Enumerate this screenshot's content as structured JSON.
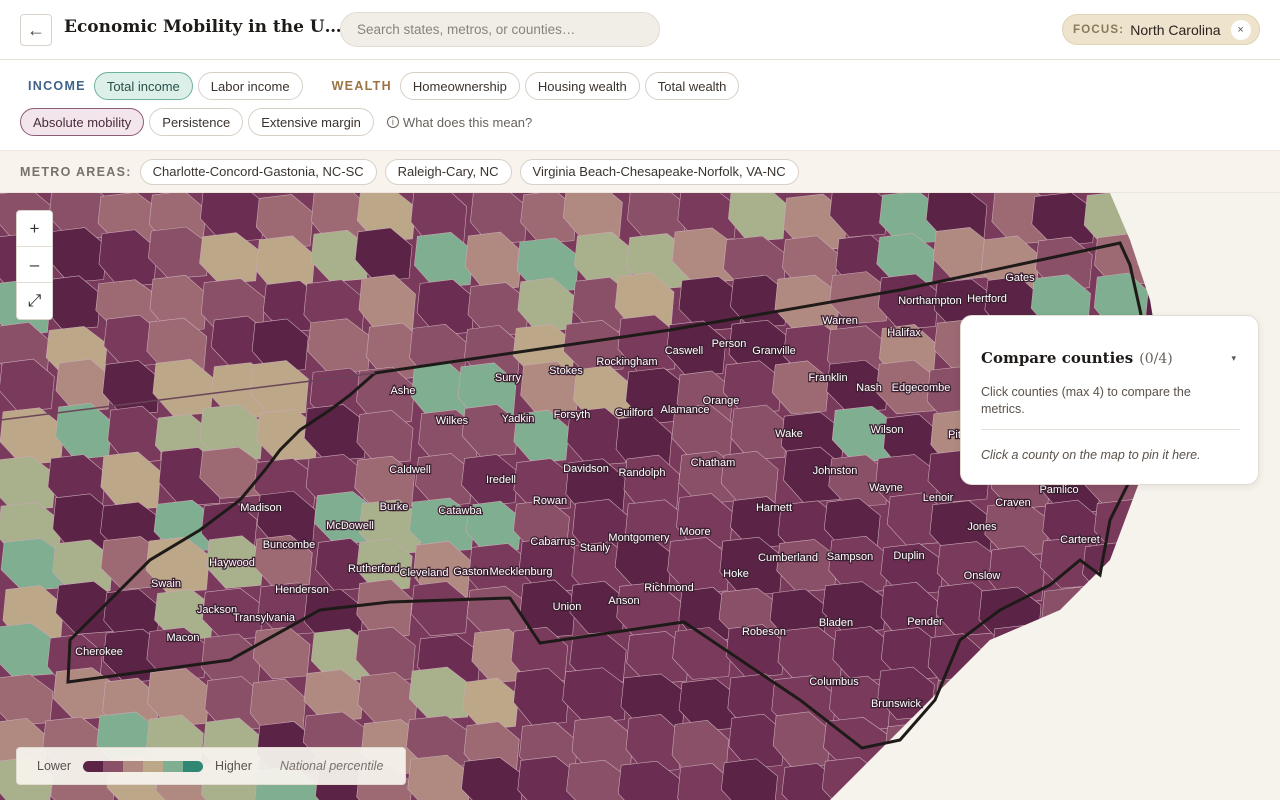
{
  "header": {
    "back_icon": "arrow-left-icon",
    "title": "Economic Mobility in the United States",
    "search_placeholder": "Search states, metros, or counties…",
    "focus_label": "FOCUS:",
    "focus_value": "North Carolina",
    "focus_clear": "×"
  },
  "filters": {
    "income_label": "INCOME",
    "income_options": [
      "Total income",
      "Labor income"
    ],
    "income_selected": "Total income",
    "wealth_label": "WEALTH",
    "wealth_options": [
      "Homeownership",
      "Housing wealth",
      "Total wealth"
    ],
    "measure_options": [
      "Absolute mobility",
      "Persistence",
      "Extensive margin"
    ],
    "measure_selected": "Absolute mobility",
    "help_text": "What does this mean?"
  },
  "metros": {
    "label": "METRO AREAS:",
    "items": [
      "Charlotte-Concord-Gastonia, NC-SC",
      "Raleigh-Cary, NC",
      "Virginia Beach-Chesapeake-Norfolk, VA-NC"
    ]
  },
  "zoom": {
    "in": "+",
    "out": "–",
    "fullscreen": "⤢"
  },
  "compare": {
    "title": "Compare counties",
    "count": "(0/4)",
    "caret": "▾",
    "description": "Click counties (max 4) to compare the metrics.",
    "hint": "Click a county on the map to pin it here."
  },
  "legend": {
    "low": "Lower",
    "high": "Higher",
    "note": "National percentile",
    "colors": [
      "#5b2447",
      "#8a5068",
      "#b08a80",
      "#bca788",
      "#7fae90",
      "#2f8774"
    ]
  },
  "map": {
    "focus_state": "North Carolina",
    "county_labels": [
      "Ashe",
      "Surry",
      "Stokes",
      "Rockingham",
      "Caswell",
      "Person",
      "Granville",
      "Warren",
      "Northampton",
      "Hertford",
      "Gates",
      "Halifax",
      "Wilkes",
      "Yadkin",
      "Forsyth",
      "Guilford",
      "Alamance",
      "Orange",
      "Franklin",
      "Nash",
      "Edgecombe",
      "Caldwell",
      "Iredell",
      "Davidson",
      "Randolph",
      "Chatham",
      "Wake",
      "Wilson",
      "Johnston",
      "Wayne",
      "Lenoir",
      "Pamlico",
      "Craven",
      "Madison",
      "Burke",
      "Catawba",
      "Rowan",
      "Harnett",
      "McDowell",
      "Buncombe",
      "Haywood",
      "Cabarrus",
      "Stanly",
      "Montgomery",
      "Moore",
      "Cumberland",
      "Sampson",
      "Duplin",
      "Jones",
      "Carteret",
      "Rutherford",
      "Cleveland",
      "Gaston",
      "Mecklenburg",
      "Hoke",
      "Onslow",
      "Swain",
      "Henderson",
      "Jackson",
      "Transylvania",
      "Union",
      "Anson",
      "Richmond",
      "Macon",
      "Cherokee",
      "Robeson",
      "Bladen",
      "Pender",
      "Columbus",
      "Brunswick",
      "Pitt"
    ]
  }
}
